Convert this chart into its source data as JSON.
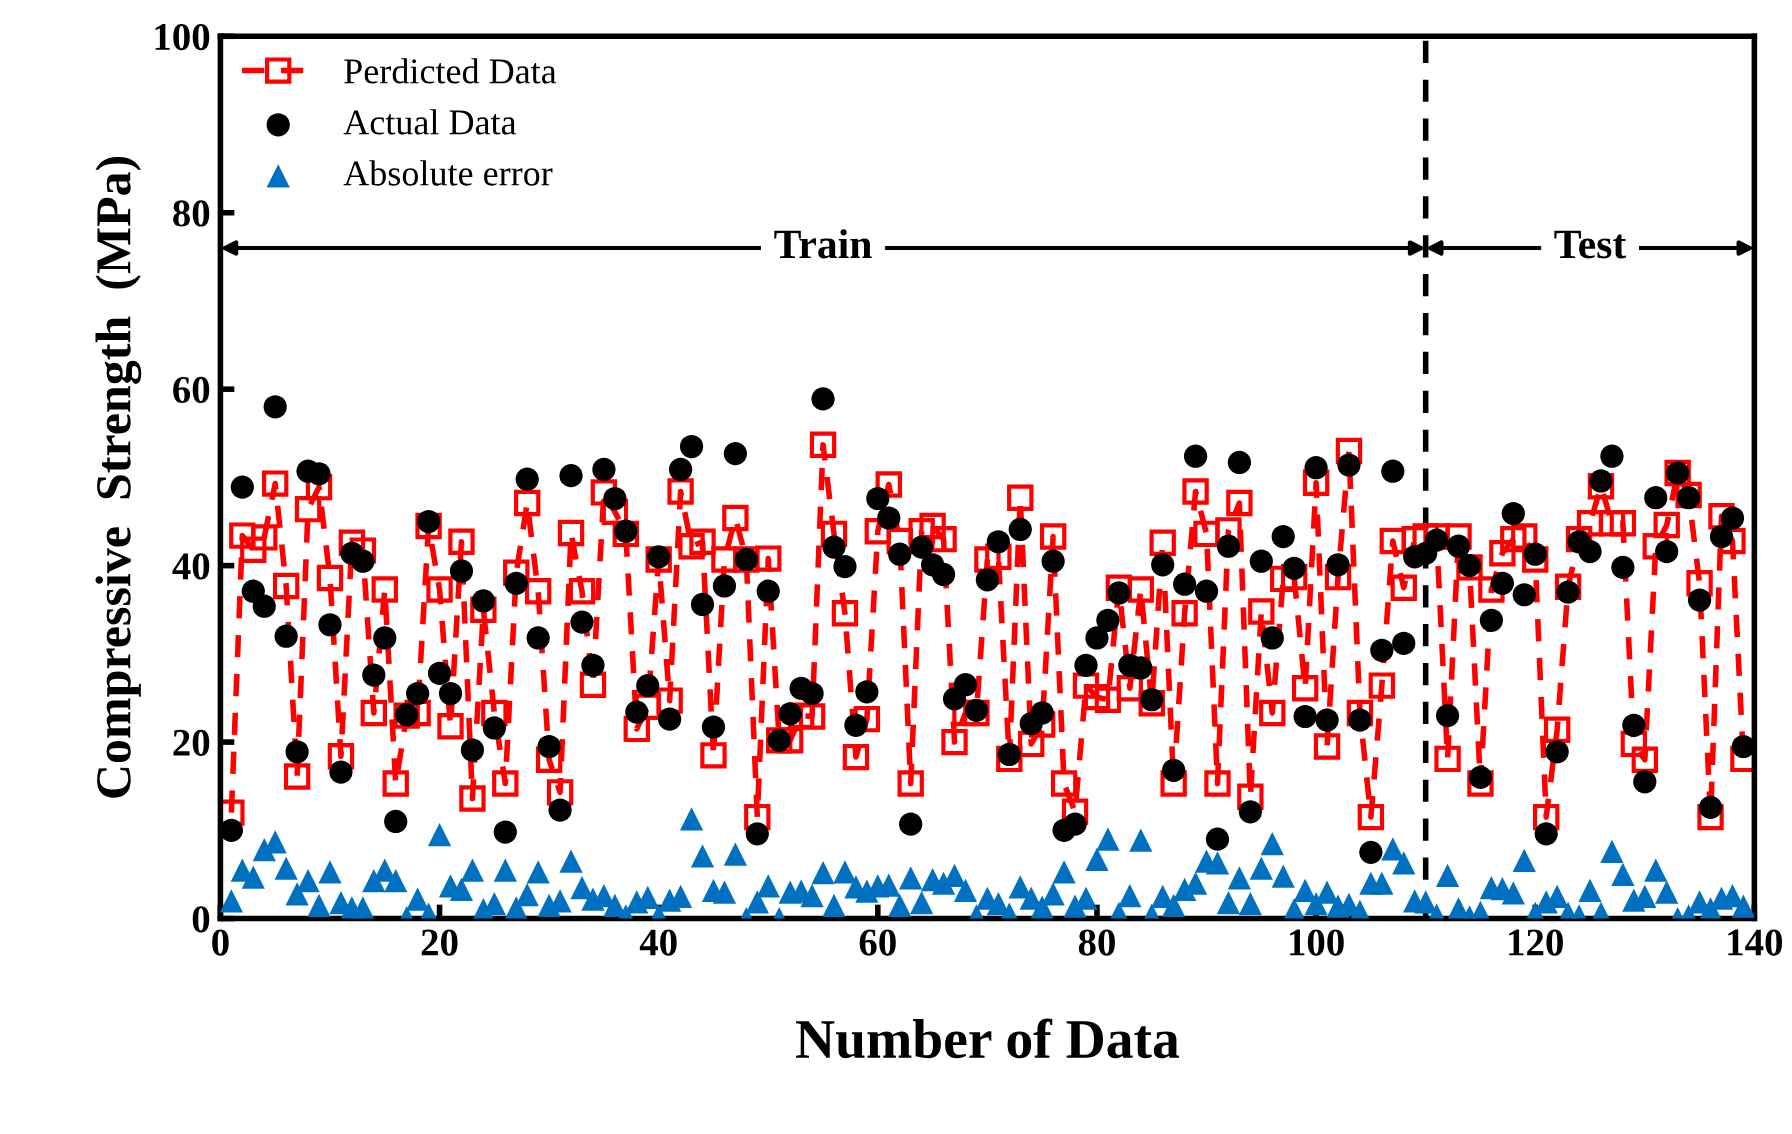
{
  "chart_data": {
    "type": "scatter",
    "xlabel": "Number of Data",
    "ylabel": "Compressive  Strength  (MPa)",
    "xlim": [
      0,
      140
    ],
    "ylim": [
      0,
      100
    ],
    "xticks": [
      0,
      20,
      40,
      60,
      80,
      100,
      120,
      140
    ],
    "yticks": [
      0,
      20,
      40,
      60,
      80,
      100
    ],
    "grid": false,
    "legend": "top left",
    "ref_lines": [
      {
        "axis": "x",
        "value": 110,
        "color": "#000000",
        "line_style": "dashed"
      }
    ],
    "annotations": [
      "Train",
      "Test"
    ],
    "x": [
      1,
      2,
      3,
      4,
      5,
      6,
      7,
      8,
      9,
      10,
      11,
      12,
      13,
      14,
      15,
      16,
      17,
      18,
      19,
      20,
      21,
      22,
      23,
      24,
      25,
      26,
      27,
      28,
      29,
      30,
      31,
      32,
      33,
      34,
      35,
      36,
      37,
      38,
      39,
      40,
      41,
      42,
      43,
      44,
      45,
      46,
      47,
      48,
      49,
      50,
      51,
      52,
      53,
      54,
      55,
      56,
      57,
      58,
      59,
      60,
      61,
      62,
      63,
      64,
      65,
      66,
      67,
      68,
      69,
      70,
      71,
      72,
      73,
      74,
      75,
      76,
      77,
      78,
      79,
      80,
      81,
      82,
      83,
      84,
      85,
      86,
      87,
      88,
      89,
      90,
      91,
      92,
      93,
      94,
      95,
      96,
      97,
      98,
      99,
      100,
      101,
      102,
      103,
      104,
      105,
      106,
      107,
      108,
      109,
      110,
      111,
      112,
      113,
      114,
      115,
      116,
      117,
      118,
      119,
      120,
      121,
      122,
      123,
      124,
      125,
      126,
      127,
      128,
      129,
      130,
      131,
      132,
      133,
      134,
      135,
      136,
      137,
      138,
      139
    ],
    "series": [
      {
        "name": "Perdicted Data",
        "type": "line",
        "color": "#ff0000",
        "marker": "square",
        "line_style": "dashed",
        "values": [
          12,
          43.4,
          41.8,
          43.2,
          49.3,
          37.7,
          16.1,
          46.4,
          48.9,
          38.6,
          18.4,
          42.6,
          41.7,
          23.3,
          37.3,
          15.3,
          23,
          23.3,
          44.5,
          37.3,
          21.8,
          42.7,
          13.6,
          35,
          23.3,
          15.3,
          39.2,
          47.1,
          37.1,
          18,
          14.3,
          43.7,
          37.1,
          26.5,
          48.3,
          46.1,
          43.6,
          21.5,
          24,
          40.7,
          24.7,
          48.4,
          42.2,
          42.7,
          18.5,
          40.7,
          45.4,
          40.7,
          11.5,
          40.8,
          20.2,
          20.2,
          23,
          22.9,
          53.7,
          43.6,
          34.6,
          18.3,
          22.6,
          43.9,
          49.2,
          42.8,
          15.3,
          43.9,
          44.5,
          43,
          20,
          23.3,
          23.3,
          40.7,
          41,
          18.1,
          47.7,
          19.8,
          22,
          43.3,
          15.3,
          12.1,
          26.4,
          25.1,
          24.8,
          37.5,
          26.1,
          37.3,
          24.4,
          42.6,
          15.3,
          34.6,
          48.4,
          43.6,
          15.3,
          44,
          47.1,
          13.8,
          34.8,
          23.3,
          38.5,
          38.7,
          26.1,
          49.4,
          19.5,
          38.7,
          53,
          23.3,
          11.5,
          26.4,
          42.8,
          37.5,
          43,
          43.3,
          43.3,
          18.1,
          43.3,
          39.8,
          15.3,
          37.3,
          41.4,
          43,
          43.3,
          40.7,
          11.5,
          21.4,
          37.6,
          43,
          44.8,
          49,
          44.8,
          44.8,
          19.8,
          18,
          42.2,
          44.6,
          50.5,
          48,
          38,
          11.5,
          45.6,
          42.8,
          18.1
        ]
      },
      {
        "name": "Actual Data",
        "color": "#000000",
        "marker": "circle",
        "values": [
          10,
          48.9,
          37.1,
          35.4,
          58,
          32,
          18.9,
          50.7,
          50.4,
          33.3,
          16.6,
          41.4,
          40.5,
          27.6,
          31.8,
          11,
          23.1,
          25.5,
          45,
          27.8,
          25.5,
          39.4,
          19.1,
          36,
          21.6,
          9.8,
          38,
          49.8,
          31.8,
          19.5,
          12.3,
          50.2,
          33.6,
          28.7,
          50.9,
          47.6,
          43.9,
          23.4,
          26.4,
          41,
          22.6,
          50.9,
          53.5,
          35.6,
          21.7,
          37.7,
          52.7,
          40.7,
          9.6,
          37.1,
          20.2,
          23.2,
          26.1,
          25.5,
          58.9,
          42.1,
          39.9,
          21.9,
          25.7,
          47.6,
          45.4,
          41.3,
          10.7,
          42.1,
          40.1,
          39,
          24.9,
          26.5,
          23.6,
          38.4,
          42.7,
          18.6,
          44.1,
          22.1,
          23.3,
          40.5,
          10,
          10.7,
          28.7,
          31.8,
          33.8,
          36.9,
          28.7,
          28.4,
          24.8,
          40.1,
          16.8,
          37.9,
          52.4,
          37.1,
          9,
          42.2,
          51.7,
          12.1,
          40.5,
          31.8,
          43.3,
          39.7,
          22.9,
          51.1,
          22.5,
          40.1,
          51.4,
          22.5,
          7.5,
          30.4,
          50.7,
          31.2,
          41,
          41.4,
          42.9,
          23,
          42.2,
          40,
          16,
          33.8,
          38,
          45.9,
          36.7,
          41.3,
          9.6,
          18.9,
          37,
          42.7,
          41.6,
          49.6,
          52.4,
          39.8,
          21.9,
          15.5,
          47.7,
          41.6,
          50.5,
          47.7,
          36.1,
          12.6,
          43.3,
          45.4,
          19.5
        ]
      },
      {
        "name": "Absolute error",
        "color": "#0070c0",
        "marker": "triangle",
        "values": [
          2,
          5.5,
          4.7,
          7.8,
          8.7,
          5.7,
          2.8,
          4.3,
          1.5,
          5.3,
          1.8,
          1.2,
          1.2,
          4.3,
          5.5,
          4.3,
          0.1,
          2.2,
          0.5,
          9.5,
          3.7,
          3.3,
          5.5,
          1,
          1.7,
          5.5,
          1.2,
          2.7,
          5.3,
          1.5,
          2,
          6.5,
          3.5,
          2.2,
          2.6,
          1.5,
          0.3,
          1.9,
          2.4,
          0.3,
          2.1,
          2.5,
          11.3,
          7.1,
          3.2,
          3,
          7.3,
          0,
          1.9,
          3.7,
          0,
          3,
          3.1,
          2.6,
          5.2,
          1.5,
          5.3,
          3.6,
          3.1,
          3.7,
          3.8,
          1.5,
          4.6,
          1.8,
          4.4,
          4,
          4.9,
          3.2,
          0.3,
          2.3,
          1.7,
          0.5,
          3.6,
          2.3,
          1.3,
          2.8,
          5.3,
          1.4,
          2.3,
          6.7,
          9,
          0.6,
          2.6,
          8.9,
          0.4,
          2.5,
          1.5,
          3.3,
          4,
          6.5,
          6.3,
          1.8,
          4.6,
          1.7,
          5.7,
          8.5,
          4.8,
          1,
          3.2,
          1.7,
          3,
          1.4,
          1.6,
          0.8,
          4,
          4,
          7.9,
          6.3,
          2,
          1.9,
          0.4,
          4.9,
          1.1,
          0.2,
          0.7,
          3.5,
          3.4,
          2.9,
          6.6,
          0.6,
          1.9,
          2.5,
          0.6,
          0.3,
          3.2,
          0.6,
          7.6,
          5,
          2.1,
          2.5,
          5.5,
          3,
          0,
          0.3,
          1.9,
          1.1,
          2.3,
          2.6,
          1.4
        ]
      }
    ]
  }
}
